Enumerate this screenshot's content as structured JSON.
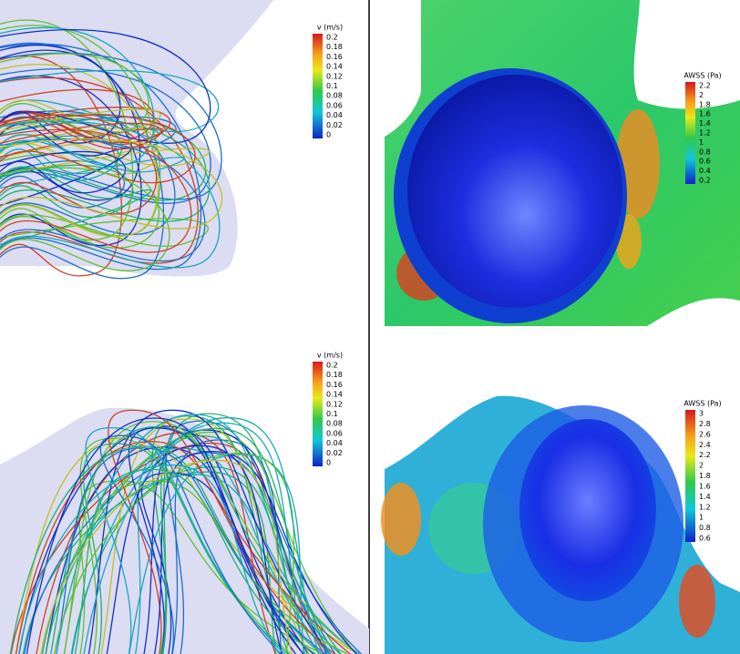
{
  "panels": [
    {
      "legend": {
        "title": "v (m/s)",
        "labels": [
          "0.2",
          "0.18",
          "0.16",
          "0.14",
          "0.12",
          "0.1",
          "0.08",
          "0.06",
          "0.04",
          "0.02",
          "0"
        ]
      }
    },
    {
      "legend": {
        "title": "AWSS (Pa)",
        "labels": [
          "2.2",
          "2",
          "1.8",
          "1.6",
          "1.4",
          "1.2",
          "1",
          "0.8",
          "0.6",
          "0.4",
          "0.2"
        ]
      }
    },
    {
      "legend": {
        "title": "v (m/s)",
        "labels": [
          "0.2",
          "0.18",
          "0.16",
          "0.14",
          "0.12",
          "0.1",
          "0.08",
          "0.06",
          "0.04",
          "0.02",
          "0"
        ]
      }
    },
    {
      "legend": {
        "title": "AWSS (Pa)",
        "labels": [
          "3",
          "2.8",
          "2.6",
          "2.4",
          "2.2",
          "2",
          "1.8",
          "1.6",
          "1.4",
          "1.2",
          "1",
          "0.8",
          "0.6"
        ]
      }
    }
  ]
}
